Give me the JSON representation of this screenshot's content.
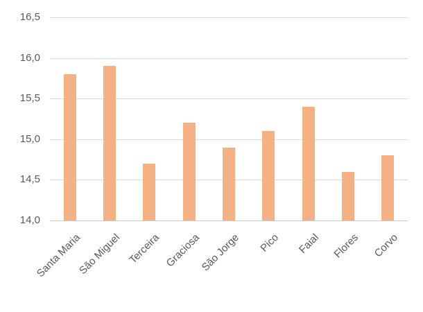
{
  "chart_data": {
    "type": "bar",
    "categories": [
      "Santa Maria",
      "São Miguel",
      "Terceira",
      "Graciosa",
      "São Jorge",
      "Pico",
      "Faial",
      "Flores",
      "Corvo"
    ],
    "values": [
      15.8,
      15.9,
      14.7,
      15.2,
      14.9,
      15.1,
      15.4,
      14.6,
      14.8
    ],
    "title": "",
    "xlabel": "",
    "ylabel": "",
    "ylim": [
      14.0,
      16.5
    ],
    "ytick_step": 0.5,
    "ytick_labels": [
      "14,0",
      "14,5",
      "15,0",
      "15,5",
      "16,0",
      "16,5"
    ],
    "decimal_separator": ",",
    "grid": true,
    "legend": false,
    "colors": {
      "bar": "#F4B183",
      "gridline": "#D9D9D9",
      "axis_line": "#C9C9C9",
      "tick_label": "#595959"
    }
  }
}
